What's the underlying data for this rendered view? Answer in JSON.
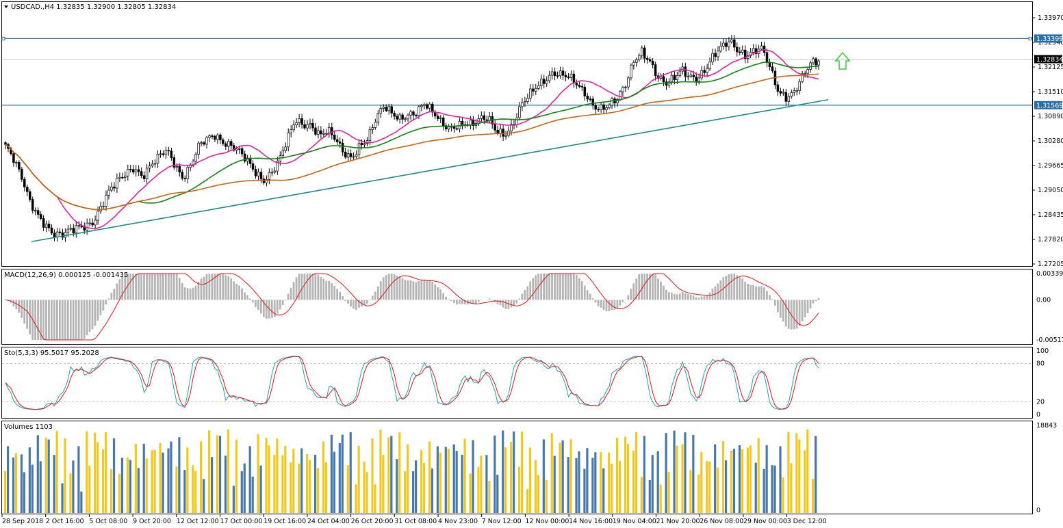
{
  "main_header": "USDCAD.,H4  1.32835 1.32900 1.32805 1.32834",
  "price_axis": [
    "1.33970",
    "1.32940",
    "1.32125",
    "1.31510",
    "1.30890",
    "1.30280",
    "1.29665",
    "1.29050",
    "1.28435",
    "1.27820",
    "1.27205"
  ],
  "tags": {
    "resistance": "1.33399",
    "current": "1.32834",
    "support": "1.31569"
  },
  "macd": {
    "header": "MACD(12,26,9) 0.000125 -0.001435",
    "axis": [
      "0.003392",
      "0.00",
      "-0.005176"
    ]
  },
  "stoch": {
    "header": "Sto(5,3,3) 95.5017 95.2028",
    "axis": [
      "100",
      "80",
      "20",
      "0"
    ]
  },
  "volumes": {
    "header": "Volumes 1103",
    "axis": [
      "18843",
      "0"
    ]
  },
  "time_axis": [
    "28 Sep 2018",
    "2 Oct 16:00",
    "5 Oct 08:00",
    "9 Oct 20:00",
    "12 Oct 12:00",
    "17 Oct 00:00",
    "19 Oct 16:00",
    "24 Oct 04:00",
    "26 Oct 20:00",
    "31 Oct 08:00",
    "4 Nov 23:00",
    "7 Nov 12:00",
    "12 Nov 00:00",
    "14 Nov 16:00",
    "19 Nov 04:00",
    "21 Nov 20:00",
    "26 Nov 08:00",
    "29 Nov 00:00",
    "3 Dec 12:00"
  ],
  "colors": {
    "ma_fast": "#e020a0",
    "ma_mid": "#108010",
    "ma_slow": "#c86414",
    "hline": "#2a6ea8",
    "trendline": "#1a8a8a",
    "up_arrow": "#3cc83c",
    "macd_hist": "#b4b4b4",
    "macd_signal": "#e01414",
    "stoch_main": "#1ea0b4",
    "stoch_signal": "#e01414",
    "vol_up": "#f0c81e",
    "vol_down": "#4678aa"
  },
  "chart_data": {
    "type": "candlestick",
    "symbol": "USDCAD.",
    "timeframe": "H4",
    "ohlc_last": {
      "open": 1.32835,
      "high": 1.329,
      "low": 1.32805,
      "close": 1.32834
    },
    "ylim": [
      1.27205,
      1.3397
    ],
    "horizontal_levels": [
      1.33399,
      1.31569
    ],
    "trendline": {
      "from": {
        "x": "28 Sep 2018",
        "y": 1.2782
      },
      "to": {
        "x": "3 Dec 12:00",
        "y": 1.3172
      }
    },
    "close_series": [
      1.3045,
      1.3005,
      1.2955,
      1.2895,
      1.286,
      1.283,
      1.28,
      1.2795,
      1.281,
      1.2825,
      1.283,
      1.284,
      1.288,
      1.292,
      1.295,
      1.2975,
      1.299,
      1.296,
      1.2985,
      1.301,
      1.3035,
      1.3,
      1.296,
      1.299,
      1.304,
      1.306,
      1.3075,
      1.306,
      1.305,
      1.303,
      1.3,
      1.297,
      1.295,
      1.2975,
      1.301,
      1.306,
      1.311,
      1.31,
      1.3105,
      1.308,
      1.309,
      1.306,
      1.302,
      1.301,
      1.305,
      1.307,
      1.312,
      1.315,
      1.313,
      1.312,
      1.3135,
      1.314,
      1.316,
      1.3135,
      1.311,
      1.3095,
      1.3105,
      1.311,
      1.31,
      1.3115,
      1.312,
      1.309,
      1.308,
      1.31,
      1.315,
      1.318,
      1.321,
      1.323,
      1.325,
      1.324,
      1.323,
      1.321,
      1.319,
      1.316,
      1.315,
      1.3155,
      1.317,
      1.321,
      1.328,
      1.331,
      1.328,
      1.323,
      1.321,
      1.323,
      1.326,
      1.324,
      1.323,
      1.325,
      1.329,
      1.332,
      1.334,
      1.331,
      1.329,
      1.33,
      1.331,
      1.326,
      1.32,
      1.318,
      1.319,
      1.323,
      1.327,
      1.3283
    ]
  },
  "macd_data": {
    "fast": 12,
    "slow": 26,
    "signal": 9,
    "main": 0.000125,
    "signal_value": -0.001435,
    "ylim": [
      -0.005176,
      0.003392
    ]
  },
  "stoch_data": {
    "k": 5,
    "d": 3,
    "slowing": 3,
    "main": 95.5017,
    "signal": 95.2028,
    "levels": [
      20,
      80
    ],
    "ylim": [
      0,
      100
    ]
  },
  "volume_data": {
    "last": 1103,
    "ylim": [
      0,
      18843
    ]
  }
}
